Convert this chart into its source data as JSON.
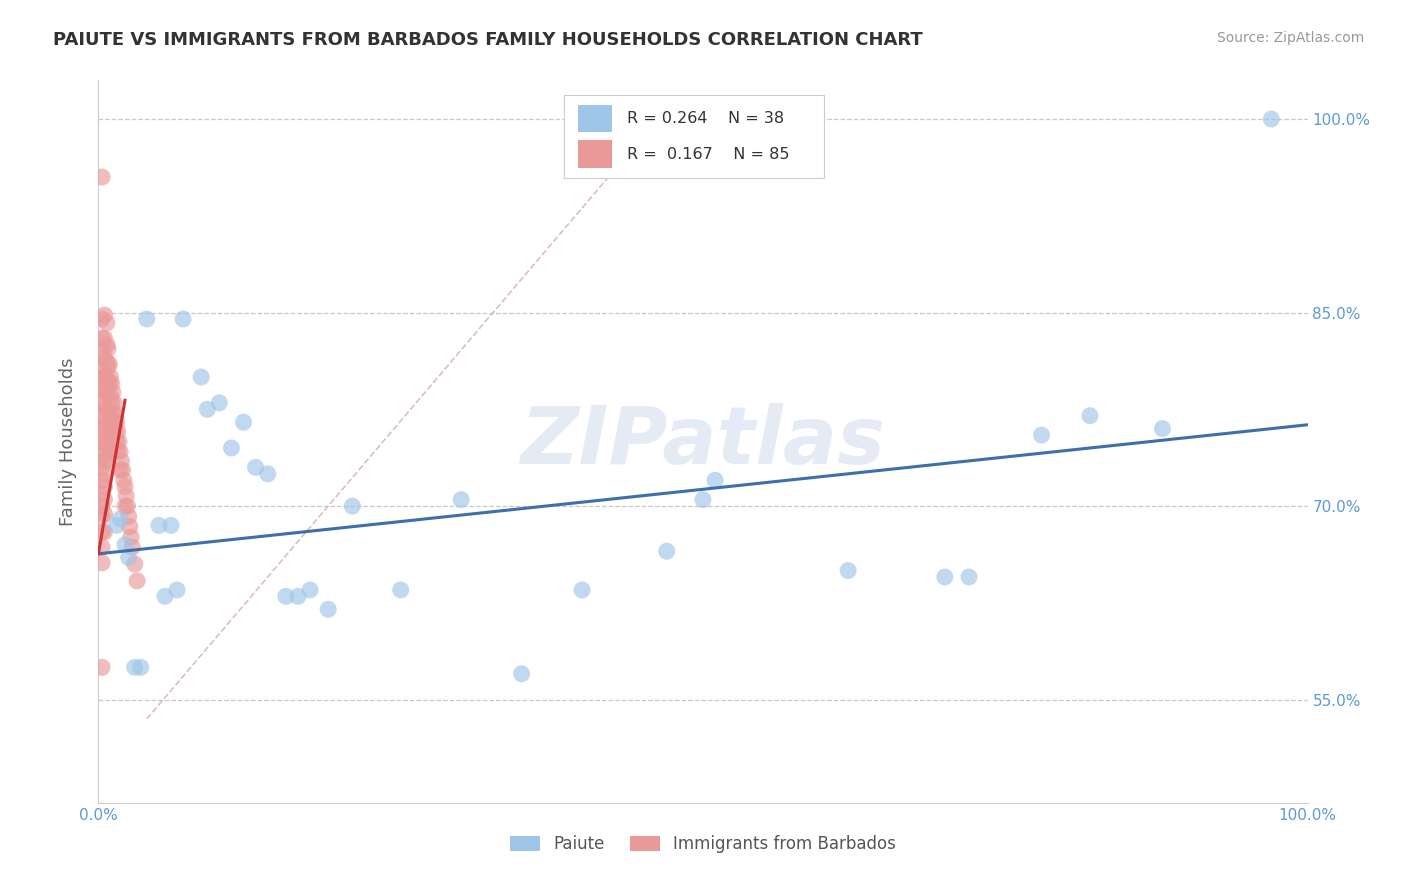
{
  "title": "PAIUTE VS IMMIGRANTS FROM BARBADOS FAMILY HOUSEHOLDS CORRELATION CHART",
  "source": "Source: ZipAtlas.com",
  "ylabel": "Family Households",
  "xlim": [
    0.0,
    1.0
  ],
  "ylim": [
    0.47,
    1.03
  ],
  "ytick_vals": [
    0.55,
    0.7,
    0.85,
    1.0
  ],
  "ytick_labels": [
    "55.0%",
    "70.0%",
    "85.0%",
    "100.0%"
  ],
  "grid_ytick_vals": [
    0.55,
    0.7,
    0.85,
    1.0
  ],
  "background_color": "#ffffff",
  "grid_color": "#c8c8c8",
  "blue_scatter_color": "#9fc5e8",
  "pink_scatter_color": "#ea9999",
  "blue_line_color": "#3d6fad",
  "pink_line_color": "#cc3333",
  "diag_line_color": "#d0b0b0",
  "watermark_color": "#cdd8ec",
  "watermark_text": "ZIPatlas",
  "legend_R_blue": "0.264",
  "legend_N_blue": "38",
  "legend_R_pink": "0.167",
  "legend_N_pink": "85",
  "blue_line_x": [
    0.0,
    1.0
  ],
  "blue_line_y": [
    0.663,
    0.763
  ],
  "pink_line_x": [
    0.0,
    0.022
  ],
  "pink_line_y": [
    0.663,
    0.782
  ],
  "diag_line_x": [
    0.04,
    0.44
  ],
  "diag_line_y": [
    0.535,
    0.975
  ],
  "paiute_x": [
    0.015,
    0.018,
    0.022,
    0.025,
    0.03,
    0.035,
    0.04,
    0.05,
    0.055,
    0.06,
    0.065,
    0.07,
    0.085,
    0.09,
    0.1,
    0.11,
    0.12,
    0.13,
    0.14,
    0.155,
    0.165,
    0.175,
    0.19,
    0.21,
    0.25,
    0.3,
    0.35,
    0.4,
    0.47,
    0.5,
    0.51,
    0.62,
    0.7,
    0.72,
    0.78,
    0.82,
    0.88,
    0.97
  ],
  "paiute_y": [
    0.685,
    0.69,
    0.67,
    0.66,
    0.575,
    0.575,
    0.845,
    0.685,
    0.63,
    0.685,
    0.635,
    0.845,
    0.8,
    0.775,
    0.78,
    0.745,
    0.765,
    0.73,
    0.725,
    0.63,
    0.63,
    0.635,
    0.62,
    0.7,
    0.635,
    0.705,
    0.57,
    0.635,
    0.665,
    0.705,
    0.72,
    0.65,
    0.645,
    0.645,
    0.755,
    0.77,
    0.76,
    1.0
  ],
  "barbados_x": [
    0.003,
    0.003,
    0.003,
    0.003,
    0.003,
    0.003,
    0.003,
    0.003,
    0.003,
    0.003,
    0.003,
    0.003,
    0.003,
    0.003,
    0.003,
    0.003,
    0.003,
    0.003,
    0.003,
    0.003,
    0.005,
    0.005,
    0.005,
    0.005,
    0.005,
    0.005,
    0.005,
    0.005,
    0.005,
    0.005,
    0.005,
    0.005,
    0.005,
    0.005,
    0.005,
    0.007,
    0.007,
    0.007,
    0.007,
    0.007,
    0.007,
    0.007,
    0.007,
    0.007,
    0.008,
    0.008,
    0.008,
    0.009,
    0.009,
    0.01,
    0.01,
    0.01,
    0.01,
    0.01,
    0.011,
    0.011,
    0.011,
    0.012,
    0.012,
    0.012,
    0.013,
    0.013,
    0.014,
    0.014,
    0.015,
    0.015,
    0.016,
    0.016,
    0.017,
    0.018,
    0.018,
    0.019,
    0.02,
    0.021,
    0.022,
    0.022,
    0.023,
    0.024,
    0.025,
    0.026,
    0.027,
    0.028,
    0.03,
    0.032,
    0.003
  ],
  "barbados_y": [
    0.955,
    0.845,
    0.83,
    0.82,
    0.808,
    0.8,
    0.79,
    0.78,
    0.77,
    0.76,
    0.75,
    0.74,
    0.73,
    0.72,
    0.71,
    0.7,
    0.692,
    0.68,
    0.668,
    0.656,
    0.848,
    0.83,
    0.815,
    0.8,
    0.79,
    0.778,
    0.768,
    0.756,
    0.745,
    0.735,
    0.725,
    0.715,
    0.705,
    0.694,
    0.68,
    0.842,
    0.825,
    0.812,
    0.8,
    0.788,
    0.775,
    0.762,
    0.748,
    0.735,
    0.822,
    0.808,
    0.795,
    0.81,
    0.795,
    0.8,
    0.785,
    0.77,
    0.756,
    0.742,
    0.795,
    0.78,
    0.765,
    0.788,
    0.772,
    0.758,
    0.78,
    0.765,
    0.772,
    0.758,
    0.765,
    0.75,
    0.758,
    0.743,
    0.75,
    0.742,
    0.728,
    0.735,
    0.728,
    0.72,
    0.715,
    0.7,
    0.708,
    0.7,
    0.692,
    0.684,
    0.676,
    0.668,
    0.655,
    0.642,
    0.575
  ]
}
